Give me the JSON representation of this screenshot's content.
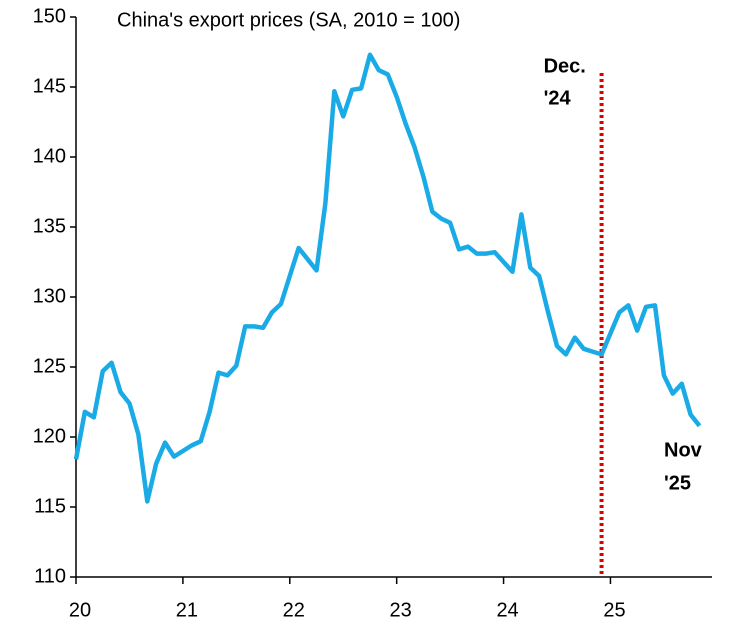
{
  "chart_data": {
    "type": "line",
    "title": "China's export prices (SA, 2010 = 100)",
    "x": [
      20,
      20.083,
      20.167,
      20.25,
      20.333,
      20.417,
      20.5,
      20.583,
      20.667,
      20.75,
      20.833,
      20.917,
      21,
      21.083,
      21.167,
      21.25,
      21.333,
      21.417,
      21.5,
      21.583,
      21.667,
      21.75,
      21.833,
      21.917,
      22,
      22.083,
      22.167,
      22.25,
      22.333,
      22.417,
      22.5,
      22.583,
      22.667,
      22.75,
      22.833,
      22.917,
      23,
      23.083,
      23.167,
      23.25,
      23.333,
      23.417,
      23.5,
      23.583,
      23.667,
      23.75,
      23.833,
      23.917,
      24,
      24.083,
      24.167,
      24.25,
      24.333,
      24.417,
      24.5,
      24.583,
      24.667,
      24.75,
      24.833,
      24.917,
      25,
      25.083,
      25.167,
      25.25,
      25.333,
      25.417,
      25.5,
      25.583,
      25.667,
      25.75,
      25.833
    ],
    "series": [
      {
        "name": "Export prices",
        "color": "#1aabe6",
        "values": [
          118.4,
          121.8,
          121.4,
          124.7,
          125.3,
          123.2,
          122.4,
          120.2,
          115.4,
          118.1,
          119.6,
          118.6,
          119.0,
          119.4,
          119.7,
          121.8,
          124.6,
          124.4,
          125.1,
          127.9,
          127.9,
          127.8,
          128.9,
          129.5,
          131.5,
          133.5,
          132.7,
          131.9,
          136.7,
          144.7,
          142.9,
          144.8,
          144.9,
          147.3,
          146.2,
          145.9,
          144.3,
          142.4,
          140.7,
          138.6,
          136.1,
          135.6,
          135.3,
          133.4,
          133.6,
          133.1,
          133.1,
          133.2,
          132.5,
          131.8,
          135.9,
          132.1,
          131.5,
          128.9,
          126.5,
          125.9,
          127.1,
          126.3,
          126.1,
          125.9,
          127.4,
          128.9,
          129.4,
          127.6,
          129.3,
          129.4,
          124.4,
          123.1,
          123.8,
          121.6,
          120.8
        ]
      }
    ],
    "xlim": [
      20,
      25.95
    ],
    "xticks": [
      20,
      21,
      22,
      23,
      24,
      25
    ],
    "ylim": [
      110,
      150
    ],
    "yticks": [
      110,
      115,
      120,
      125,
      130,
      135,
      140,
      145,
      150
    ],
    "vline": {
      "x": 24.917,
      "top": 146,
      "label": [
        "Dec.",
        "'24"
      ],
      "color": "#e00000"
    },
    "end_label": [
      "Nov",
      "'25"
    ]
  }
}
